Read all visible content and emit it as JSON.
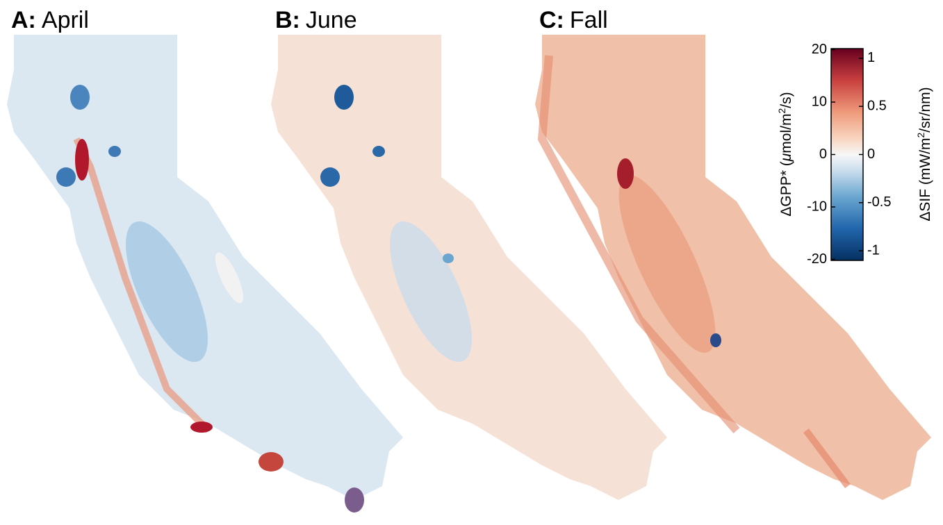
{
  "panels": [
    {
      "letter": "A:",
      "name": "April"
    },
    {
      "letter": "B:",
      "name": "June"
    },
    {
      "letter": "C:",
      "name": "Fall"
    }
  ],
  "colorbar": {
    "left_label": [
      "ΔGPP* (",
      "μ",
      "mol/m",
      "2",
      "/s)"
    ],
    "right_label": [
      "ΔSIF (mW/m",
      "2",
      "/sr/nm)"
    ],
    "left_lim": [
      -20.2,
      20.2
    ],
    "left_ticks": [
      20,
      10,
      0,
      -10,
      -20
    ],
    "right_lim": [
      -1.1,
      1.1
    ],
    "right_ticks": [
      1,
      0.5,
      0,
      -0.5,
      -1
    ]
  }
}
